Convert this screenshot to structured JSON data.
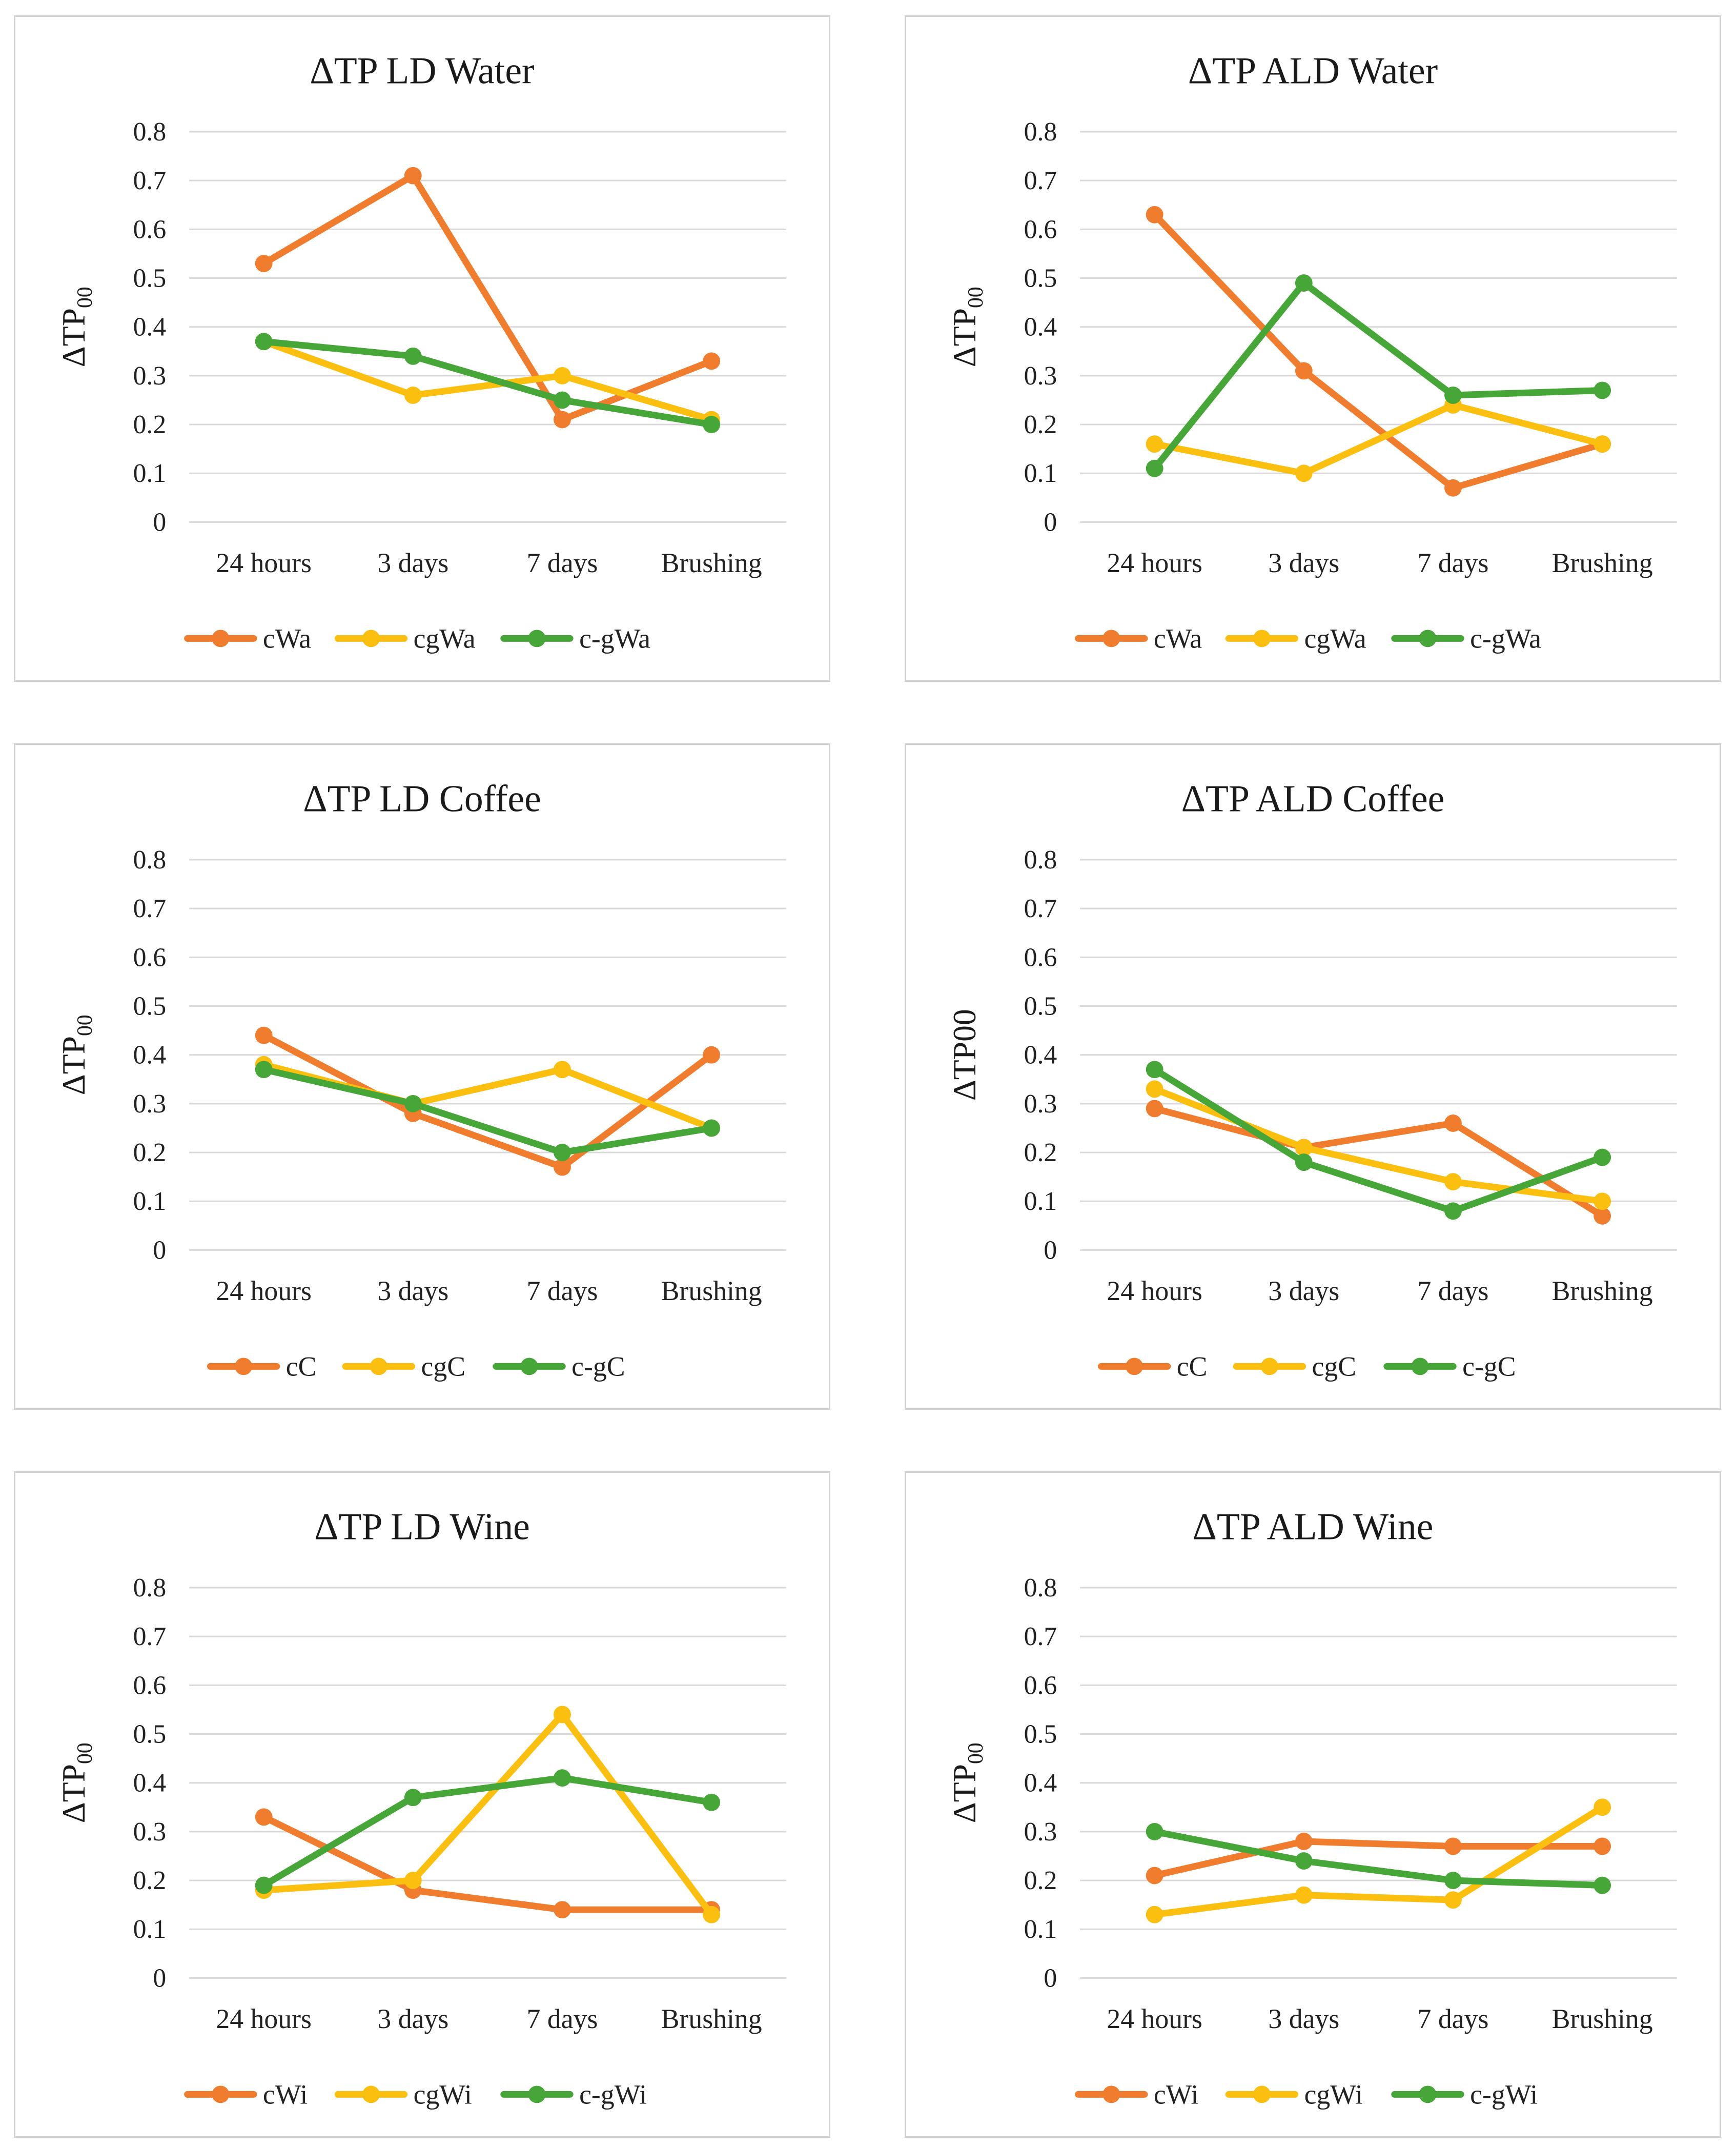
{
  "chart_data": [
    {
      "type": "line",
      "title": "ΔTP LD Water",
      "ylabel": "ΔTP",
      "ylabel_sub": "00",
      "categories": [
        "24 hours",
        "3 days",
        "7 days",
        "Brushing"
      ],
      "yticks": [
        "0",
        "0.1",
        "0.2",
        "0.3",
        "0.4",
        "0.5",
        "0.6",
        "0.7",
        "0.8"
      ],
      "ylim": [
        0,
        0.8
      ],
      "series": [
        {
          "name": "cWa",
          "color": "#f07d2e",
          "values": [
            0.53,
            0.71,
            0.21,
            0.33
          ]
        },
        {
          "name": "cgWa",
          "color": "#fbbf0f",
          "values": [
            0.37,
            0.26,
            0.3,
            0.21
          ]
        },
        {
          "name": "c-gWa",
          "color": "#46a637",
          "values": [
            0.37,
            0.34,
            0.25,
            0.2
          ]
        }
      ]
    },
    {
      "type": "line",
      "title": "ΔTP ALD Water",
      "ylabel": "ΔTP",
      "ylabel_sub": "00",
      "categories": [
        "24 hours",
        "3 days",
        "7 days",
        "Brushing"
      ],
      "yticks": [
        "0",
        "0.1",
        "0.2",
        "0.3",
        "0.4",
        "0.5",
        "0.6",
        "0.7",
        "0.8"
      ],
      "ylim": [
        0,
        0.8
      ],
      "series": [
        {
          "name": "cWa",
          "color": "#f07d2e",
          "values": [
            0.63,
            0.31,
            0.07,
            0.16
          ]
        },
        {
          "name": "cgWa",
          "color": "#fbbf0f",
          "values": [
            0.16,
            0.1,
            0.24,
            0.16
          ]
        },
        {
          "name": "c-gWa",
          "color": "#46a637",
          "values": [
            0.11,
            0.49,
            0.26,
            0.27
          ]
        }
      ]
    },
    {
      "type": "line",
      "title": "ΔTP LD Coffee",
      "ylabel": "ΔTP",
      "ylabel_sub": "00",
      "categories": [
        "24 hours",
        "3 days",
        "7 days",
        "Brushing"
      ],
      "yticks": [
        "0",
        "0.1",
        "0.2",
        "0.3",
        "0.4",
        "0.5",
        "0.6",
        "0.7",
        "0.8"
      ],
      "ylim": [
        0,
        0.8
      ],
      "series": [
        {
          "name": "cC",
          "color": "#f07d2e",
          "values": [
            0.44,
            0.28,
            0.17,
            0.4
          ]
        },
        {
          "name": "cgC",
          "color": "#fbbf0f",
          "values": [
            0.38,
            0.3,
            0.37,
            0.25
          ]
        },
        {
          "name": "c-gC",
          "color": "#46a637",
          "values": [
            0.37,
            0.3,
            0.2,
            0.25
          ]
        }
      ]
    },
    {
      "type": "line",
      "title": "ΔTP ALD Coffee",
      "ylabel": "ΔTP00",
      "ylabel_sub": "",
      "categories": [
        "24 hours",
        "3 days",
        "7 days",
        "Brushing"
      ],
      "yticks": [
        "0",
        "0.1",
        "0.2",
        "0.3",
        "0.4",
        "0.5",
        "0.6",
        "0.7",
        "0.8"
      ],
      "ylim": [
        0,
        0.8
      ],
      "series": [
        {
          "name": "cC",
          "color": "#f07d2e",
          "values": [
            0.29,
            0.21,
            0.26,
            0.07
          ]
        },
        {
          "name": "cgC",
          "color": "#fbbf0f",
          "values": [
            0.33,
            0.21,
            0.14,
            0.1
          ]
        },
        {
          "name": "c-gC",
          "color": "#46a637",
          "values": [
            0.37,
            0.18,
            0.08,
            0.19
          ]
        }
      ]
    },
    {
      "type": "line",
      "title": "ΔTP LD Wine",
      "ylabel": "ΔTP",
      "ylabel_sub": "00",
      "categories": [
        "24 hours",
        "3 days",
        "7 days",
        "Brushing"
      ],
      "yticks": [
        "0",
        "0.1",
        "0.2",
        "0.3",
        "0.4",
        "0.5",
        "0.6",
        "0.7",
        "0.8"
      ],
      "ylim": [
        0,
        0.8
      ],
      "series": [
        {
          "name": "cWi",
          "color": "#f07d2e",
          "values": [
            0.33,
            0.18,
            0.14,
            0.14
          ]
        },
        {
          "name": "cgWi",
          "color": "#fbbf0f",
          "values": [
            0.18,
            0.2,
            0.54,
            0.13
          ]
        },
        {
          "name": "c-gWi",
          "color": "#46a637",
          "values": [
            0.19,
            0.37,
            0.41,
            0.36
          ]
        }
      ]
    },
    {
      "type": "line",
      "title": "ΔTP ALD Wine",
      "ylabel": "ΔTP",
      "ylabel_sub": "00",
      "categories": [
        "24 hours",
        "3 days",
        "7 days",
        "Brushing"
      ],
      "yticks": [
        "0",
        "0.1",
        "0.2",
        "0.3",
        "0.4",
        "0.5",
        "0.6",
        "0.7",
        "0.8"
      ],
      "ylim": [
        0,
        0.8
      ],
      "series": [
        {
          "name": "cWi",
          "color": "#f07d2e",
          "values": [
            0.21,
            0.28,
            0.27,
            0.27
          ]
        },
        {
          "name": "cgWi",
          "color": "#fbbf0f",
          "values": [
            0.13,
            0.17,
            0.16,
            0.35
          ]
        },
        {
          "name": "c-gWi",
          "color": "#46a637",
          "values": [
            0.3,
            0.24,
            0.2,
            0.19
          ]
        }
      ]
    }
  ]
}
